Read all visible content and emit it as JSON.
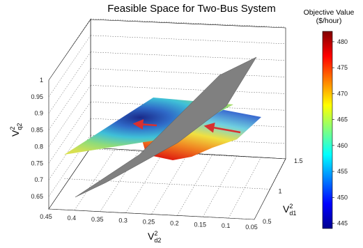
{
  "chart_data": {
    "type": "surface",
    "title": "Feasible Space for Two-Bus System",
    "axes": {
      "x": {
        "label_base": "V",
        "label_sup": "2",
        "label_sub": "d2",
        "range": [
          0.05,
          0.45
        ],
        "ticks": [
          0.45,
          0.4,
          0.35,
          0.3,
          0.25,
          0.2,
          0.15,
          0.1,
          0.05
        ],
        "tick_labels": [
          "0.45",
          "0.4",
          "0.35",
          "0.3",
          "0.25",
          "0.2",
          "0.15",
          "0.1",
          "0.05"
        ]
      },
      "y": {
        "label_base": "V",
        "label_sup": "2",
        "label_sub": "d1",
        "range": [
          0.5,
          1.5
        ],
        "ticks": [
          0.5,
          1,
          1.5
        ],
        "tick_labels": [
          "0.5",
          "1",
          "1.5"
        ]
      },
      "z": {
        "label_base": "V",
        "label_sup": "2",
        "label_sub": "q2",
        "range": [
          0.65,
          1.0
        ],
        "ticks": [
          0.65,
          0.7,
          0.75,
          0.8,
          0.85,
          0.9,
          0.95,
          1.0
        ],
        "tick_labels": [
          "0.65",
          "0.7",
          "0.75",
          "0.8",
          "0.85",
          "0.9",
          "0.95",
          "1"
        ]
      }
    },
    "grid": true,
    "colorbar": {
      "title_line1": "Objective Value",
      "title_line2": "($/hour)",
      "range": [
        444,
        482
      ],
      "ticks": [
        445,
        450,
        455,
        460,
        465,
        470,
        475,
        480
      ],
      "tick_labels": [
        "445",
        "450",
        "455",
        "460",
        "465",
        "470",
        "475",
        "480"
      ],
      "colormap": "jet",
      "placement": "right"
    },
    "colors": {
      "plane": "#808080",
      "arrow": "#d83030"
    }
  }
}
